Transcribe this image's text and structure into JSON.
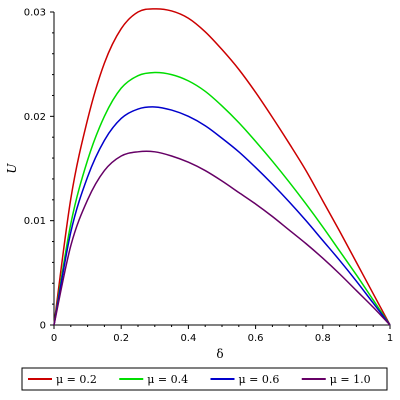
{
  "chart_data": {
    "type": "line",
    "title": "",
    "xlabel": "δ",
    "ylabel": "U",
    "xlim": [
      0,
      1
    ],
    "ylim": [
      0,
      0.03
    ],
    "grid": false,
    "legend_position": "bottom",
    "x_ticks": [
      "0",
      "0.2",
      "0.4",
      "0.6",
      "0.8",
      "1"
    ],
    "y_ticks": [
      "0",
      "0.01",
      "0.02",
      "0.03"
    ],
    "x": [
      0,
      0.05,
      0.1,
      0.15,
      0.2,
      0.25,
      0.3,
      0.35,
      0.4,
      0.45,
      0.5,
      0.55,
      0.6,
      0.65,
      0.7,
      0.75,
      0.8,
      0.85,
      0.9,
      0.95,
      1
    ],
    "series": [
      {
        "name": "μ = 0.2",
        "color": "#cc0000",
        "values": [
          0,
          0.0121,
          0.0197,
          0.0251,
          0.0284,
          0.03,
          0.0303,
          0.0301,
          0.0294,
          0.0281,
          0.0264,
          0.0245,
          0.0223,
          0.0199,
          0.0174,
          0.0148,
          0.0119,
          0.009,
          0.006,
          0.003,
          0
        ]
      },
      {
        "name": "μ = 0.4",
        "color": "#00dd00",
        "values": [
          0,
          0.0097,
          0.0158,
          0.02,
          0.0227,
          0.0239,
          0.0242,
          0.024,
          0.0234,
          0.0224,
          0.021,
          0.0194,
          0.0176,
          0.0157,
          0.0137,
          0.0116,
          0.0094,
          0.0071,
          0.0048,
          0.0024,
          0
        ]
      },
      {
        "name": "μ = 0.6",
        "color": "#0000cc",
        "values": [
          0,
          0.0089,
          0.0142,
          0.0177,
          0.0198,
          0.0207,
          0.0209,
          0.0206,
          0.02,
          0.0191,
          0.0179,
          0.0166,
          0.0151,
          0.0135,
          0.0118,
          0.01,
          0.0081,
          0.0062,
          0.0042,
          0.0021,
          0
        ]
      },
      {
        "name": "μ = 1.0",
        "color": "#660066",
        "values": [
          0,
          0.0076,
          0.012,
          0.0148,
          0.0162,
          0.0166,
          0.0166,
          0.0162,
          0.0156,
          0.0148,
          0.0138,
          0.0127,
          0.0116,
          0.0104,
          0.0091,
          0.0078,
          0.0064,
          0.0049,
          0.0033,
          0.0017,
          0
        ]
      }
    ]
  }
}
